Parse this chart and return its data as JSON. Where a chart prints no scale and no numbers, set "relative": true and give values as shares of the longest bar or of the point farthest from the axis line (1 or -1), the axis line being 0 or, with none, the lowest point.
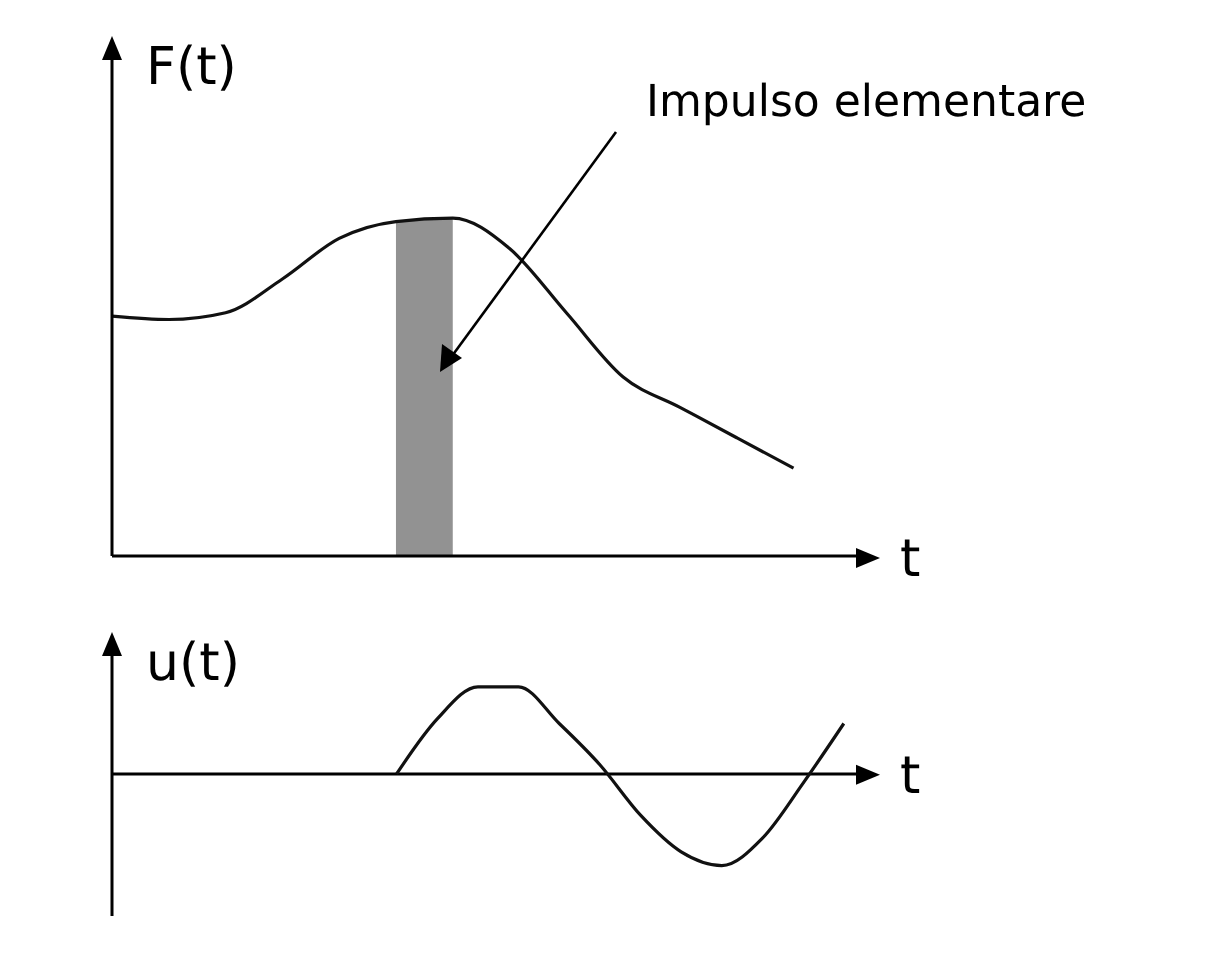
{
  "chart_data": [
    {
      "type": "line",
      "ylabel": "F(t)",
      "xlabel": "t",
      "relative": true,
      "marker": "none",
      "annotations": [
        "Impulso elementare"
      ],
      "categories": [
        null,
        null,
        null,
        null,
        null,
        null,
        null,
        null,
        null,
        null,
        null,
        null,
        null
      ],
      "series": [
        {
          "color": "#111111",
          "values": [
            0.71,
            0.7,
            0.72,
            0.82,
            0.94,
            0.99,
            1.0,
            0.91,
            0.72,
            0.53,
            0.44,
            0.35,
            0.26
          ]
        },
        {
          "type": "area",
          "color": "#777777",
          "values": [
            null,
            null,
            null,
            null,
            null,
            0.99,
            1.0,
            null,
            null,
            null,
            null,
            null,
            null
          ]
        }
      ]
    },
    {
      "type": "line",
      "ylabel": "u(t)",
      "xlabel": "t",
      "relative": true,
      "marker": "none",
      "categories": [
        null,
        null,
        null,
        null,
        null,
        null,
        null,
        null,
        null,
        null,
        null,
        null,
        null,
        null,
        null,
        null,
        null,
        null,
        null
      ],
      "series": [
        {
          "color": "#111111",
          "values": [
            null,
            null,
            null,
            null,
            null,
            null,
            null,
            0,
            0.6,
            0.95,
            0.95,
            0.55,
            0.1,
            -0.45,
            -0.85,
            -1.0,
            -0.7,
            -0.1,
            0.55
          ]
        }
      ]
    }
  ]
}
